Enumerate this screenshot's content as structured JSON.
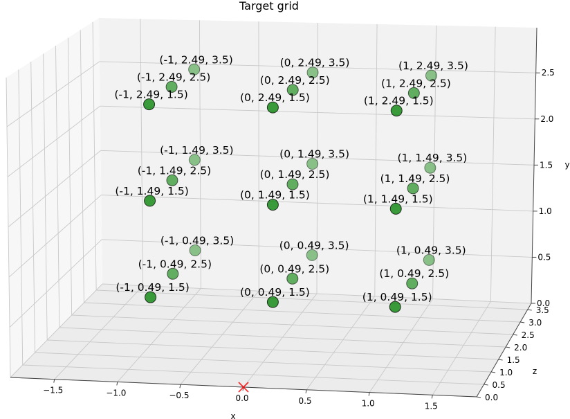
{
  "chart_data": {
    "type": "scatter",
    "projection": "3d",
    "title": "Target grid",
    "xlabel": "x",
    "ylabel": "y",
    "zlabel": "z",
    "xlim": [
      -1.85,
      1.85
    ],
    "ylim": [
      0.0,
      2.99
    ],
    "zlim": [
      0.0,
      3.75
    ],
    "xticks": [
      "−1.5",
      "−1.0",
      "−0.5",
      "0.0",
      "0.5",
      "1.0",
      "1.5"
    ],
    "yticks": [
      "0.0",
      "0.5",
      "1.0",
      "1.5",
      "2.0",
      "2.5"
    ],
    "zticks": [
      "0.0",
      "0.5",
      "1.0",
      "1.5",
      "2.0",
      "2.5",
      "3.0",
      "3.5"
    ],
    "grid": true,
    "point_color": "#008000",
    "marker_color": "#ff0000",
    "points": [
      {
        "x": -1,
        "y": 2.49,
        "z": 3.5,
        "label": "(-1, 2.49, 3.5)"
      },
      {
        "x": 0,
        "y": 2.49,
        "z": 3.5,
        "label": "(0, 2.49, 3.5)"
      },
      {
        "x": 1,
        "y": 2.49,
        "z": 3.5,
        "label": "(1, 2.49, 3.5)"
      },
      {
        "x": -1,
        "y": 1.49,
        "z": 3.5,
        "label": "(-1, 1.49, 3.5)"
      },
      {
        "x": 0,
        "y": 1.49,
        "z": 3.5,
        "label": "(0, 1.49, 3.5)"
      },
      {
        "x": 1,
        "y": 1.49,
        "z": 3.5,
        "label": "(1, 1.49, 3.5)"
      },
      {
        "x": -1,
        "y": 0.49,
        "z": 3.5,
        "label": "(-1, 0.49, 3.5)"
      },
      {
        "x": 0,
        "y": 0.49,
        "z": 3.5,
        "label": "(0, 0.49, 3.5)"
      },
      {
        "x": 1,
        "y": 0.49,
        "z": 3.5,
        "label": "(1, 0.49, 3.5)"
      },
      {
        "x": -1,
        "y": 2.49,
        "z": 2.5,
        "label": "(-1, 2.49, 2.5)"
      },
      {
        "x": 0,
        "y": 2.49,
        "z": 2.5,
        "label": "(0, 2.49, 2.5)"
      },
      {
        "x": 1,
        "y": 2.49,
        "z": 2.5,
        "label": "(1, 2.49, 2.5)"
      },
      {
        "x": -1,
        "y": 1.49,
        "z": 2.5,
        "label": "(-1, 1.49, 2.5)"
      },
      {
        "x": 0,
        "y": 1.49,
        "z": 2.5,
        "label": "(0, 1.49, 2.5)"
      },
      {
        "x": 1,
        "y": 1.49,
        "z": 2.5,
        "label": "(1, 1.49, 2.5)"
      },
      {
        "x": -1,
        "y": 0.49,
        "z": 2.5,
        "label": "(-1, 0.49, 2.5)"
      },
      {
        "x": 0,
        "y": 0.49,
        "z": 2.5,
        "label": "(0, 0.49, 2.5)"
      },
      {
        "x": 1,
        "y": 0.49,
        "z": 2.5,
        "label": "(1, 0.49, 2.5)"
      },
      {
        "x": -1,
        "y": 2.49,
        "z": 1.5,
        "label": "(-1, 2.49, 1.5)"
      },
      {
        "x": 0,
        "y": 2.49,
        "z": 1.5,
        "label": "(0, 2.49, 1.5)"
      },
      {
        "x": 1,
        "y": 2.49,
        "z": 1.5,
        "label": "(1, 2.49, 1.5)"
      },
      {
        "x": -1,
        "y": 1.49,
        "z": 1.5,
        "label": "(-1, 1.49, 1.5)"
      },
      {
        "x": 0,
        "y": 1.49,
        "z": 1.5,
        "label": "(0, 1.49, 1.5)"
      },
      {
        "x": 1,
        "y": 1.49,
        "z": 1.5,
        "label": "(1, 1.49, 1.5)"
      },
      {
        "x": -1,
        "y": 0.49,
        "z": 1.5,
        "label": "(-1, 0.49, 1.5)"
      },
      {
        "x": 0,
        "y": 0.49,
        "z": 1.5,
        "label": "(0, 0.49, 1.5)"
      },
      {
        "x": 1,
        "y": 0.49,
        "z": 1.5,
        "label": "(1, 0.49, 1.5)"
      }
    ],
    "marker": {
      "x": 0,
      "y": 0,
      "z": 0,
      "symbol": "x"
    }
  }
}
